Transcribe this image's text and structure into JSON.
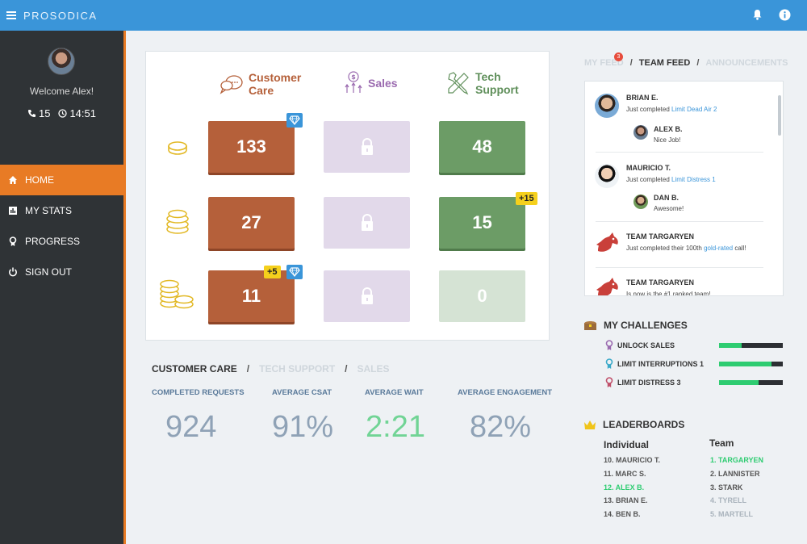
{
  "app": {
    "title": "PROSODICA"
  },
  "sidebar": {
    "welcome": "Welcome Alex!",
    "calls": "15",
    "time": "14:51",
    "nav": [
      {
        "label": "HOME",
        "icon": "home-icon",
        "active": true
      },
      {
        "label": "MY STATS",
        "icon": "stats-icon",
        "active": false
      },
      {
        "label": "PROGRESS",
        "icon": "ribbon-icon",
        "active": false
      },
      {
        "label": "SIGN OUT",
        "icon": "power-icon",
        "active": false
      }
    ]
  },
  "grid": {
    "columns": [
      {
        "label_line1": "Customer",
        "label_line2": "Care",
        "color": "#b5603a"
      },
      {
        "label_line1": "Sales",
        "label_line2": "",
        "color": "#9b6bb0"
      },
      {
        "label_line1": "Tech",
        "label_line2": "Support",
        "color": "#5f8f5a"
      }
    ],
    "rows": [
      {
        "cc": "133",
        "ts": "48"
      },
      {
        "cc": "27",
        "ts": "15",
        "ts_badge": "+15"
      },
      {
        "cc": "11",
        "cc_badge": "+5",
        "ts": "0"
      }
    ]
  },
  "stats": {
    "tabs": {
      "active": "CUSTOMER CARE",
      "tab2": "TECH SUPPORT",
      "tab3": "SALES"
    },
    "metrics": [
      {
        "label": "COMPLETED REQUESTS",
        "value": "924"
      },
      {
        "label": "AVERAGE CSAT",
        "value": "91%"
      },
      {
        "label": "AVERAGE WAIT",
        "value": "2:21"
      },
      {
        "label": "AVERAGE ENGAGEMENT",
        "value": "82%"
      }
    ]
  },
  "feed": {
    "tabs": {
      "my_feed": "MY FEED",
      "team_feed": "TEAM FEED",
      "announcements": "ANNOUNCEMENTS"
    },
    "notification_count": "3",
    "entries": [
      {
        "name": "BRIAN E.",
        "text_prefix": "Just completed ",
        "link": "Limit Dead Air 2",
        "reply_name": "ALEX B.",
        "reply_text": "Nice Job!"
      },
      {
        "name": "MAURICIO T.",
        "text_prefix": "Just completed ",
        "link": "Limit Distress 1",
        "reply_name": "DAN B.",
        "reply_text": "Awesome!"
      },
      {
        "name": "TEAM TARGARYEN",
        "text_prefix": "Just completed their 100th ",
        "link": "gold-rated",
        "text_suffix": " call!"
      },
      {
        "name": "TEAM TARGARYEN",
        "text_prefix": "Is now is the #1 ranked team!"
      }
    ]
  },
  "challenges": {
    "title": "MY CHALLENGES",
    "items": [
      {
        "label": "UNLOCK SALES",
        "progress": 0.35,
        "icon_color": "#9b6bb0"
      },
      {
        "label": "LIMIT INTERRUPTIONS 1",
        "progress": 0.82,
        "icon_color": "#3aa9c9"
      },
      {
        "label": "LIMIT DISTRESS 3",
        "progress": 0.62,
        "icon_color": "#c0506a"
      }
    ]
  },
  "leaderboards": {
    "title": "LEADERBOARDS",
    "individual_title": "Individual",
    "team_title": "Team",
    "individual": [
      "10.  MAURICIO T.",
      "11.  MARC S.",
      "12.  ALEX B.",
      "13.  BRIAN E.",
      "14.  BEN B."
    ],
    "team": [
      "1.  TARGARYEN",
      "2.  LANNISTER",
      "3.  STARK",
      "4.  TYRELL",
      "5.  MARTELL"
    ]
  }
}
